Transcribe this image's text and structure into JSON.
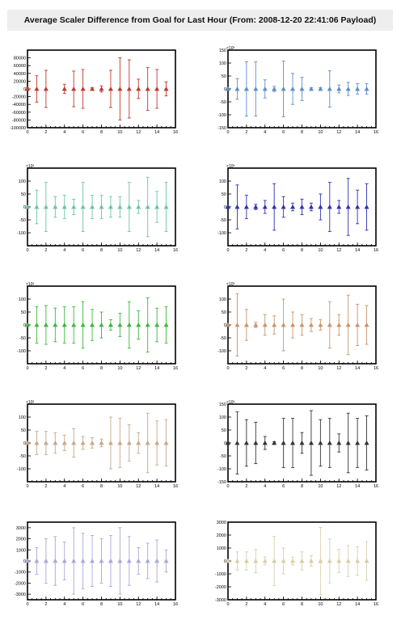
{
  "title": "Average Scaler Difference from Goal for Last Hour (From: 2008-12-20 22:41:06 Payload)",
  "chart_data": [
    {
      "type": "scatter",
      "color": "#c0392b",
      "xlim": [
        0,
        16
      ],
      "ylim": [
        -100000,
        100000
      ],
      "xticks": [
        0,
        2,
        4,
        6,
        8,
        10,
        12,
        14,
        16
      ],
      "yticks": [
        -100000,
        -80000,
        -60000,
        -40000,
        -20000,
        0,
        20000,
        40000,
        60000,
        80000
      ],
      "ytick_labels": [
        "-100000",
        "-80000",
        "-60000",
        "-40000",
        "-20000",
        "0",
        "20000",
        "40000",
        "60000",
        "80000"
      ],
      "exponent": "",
      "x": [
        0,
        1,
        2,
        4,
        5,
        6,
        7,
        8,
        9,
        10,
        11,
        12,
        13,
        14,
        15
      ],
      "y": [
        0,
        0,
        0,
        0,
        0,
        0,
        0,
        0,
        0,
        0,
        0,
        0,
        0,
        0,
        0
      ],
      "err": [
        3000,
        34000,
        48000,
        12000,
        46000,
        50000,
        3000,
        8000,
        48000,
        80000,
        75000,
        25000,
        55000,
        50000,
        18000
      ]
    },
    {
      "type": "scatter",
      "color": "#5b8fc7",
      "xlim": [
        0,
        16
      ],
      "ylim": [
        -150,
        150
      ],
      "xticks": [
        0,
        2,
        4,
        6,
        8,
        10,
        12,
        14,
        16
      ],
      "yticks": [
        -150,
        -100,
        -50,
        0,
        50,
        100,
        150
      ],
      "ytick_labels": [
        "-150",
        "-100",
        "-50",
        "0",
        "50",
        "100",
        "150"
      ],
      "exponent": "×10³",
      "x": [
        0,
        1,
        2,
        3,
        4,
        5,
        6,
        7,
        8,
        9,
        10,
        11,
        12,
        13,
        14,
        15
      ],
      "y": [
        0,
        0,
        0,
        0,
        0,
        0,
        0,
        0,
        0,
        0,
        0,
        0,
        0,
        0,
        0,
        0
      ],
      "err": [
        3,
        40,
        105,
        105,
        35,
        10,
        108,
        60,
        45,
        5,
        5,
        70,
        15,
        25,
        20,
        20
      ]
    },
    {
      "type": "scatter",
      "color": "#6cc3a8",
      "xlim": [
        0,
        16
      ],
      "ylim": [
        -150,
        150
      ],
      "xticks": [
        0,
        2,
        4,
        6,
        8,
        10,
        12,
        14,
        16
      ],
      "yticks": [
        -100,
        -50,
        0,
        50,
        100
      ],
      "ytick_labels": [
        "-100",
        "-50",
        "0",
        "50",
        "100"
      ],
      "exponent": "×10³",
      "x": [
        0,
        1,
        2,
        3,
        4,
        5,
        6,
        7,
        8,
        9,
        10,
        11,
        12,
        13,
        14,
        15
      ],
      "y": [
        0,
        0,
        0,
        0,
        0,
        0,
        0,
        0,
        0,
        0,
        0,
        0,
        0,
        0,
        0,
        0
      ],
      "err": [
        3,
        65,
        95,
        40,
        45,
        30,
        95,
        45,
        45,
        40,
        40,
        95,
        25,
        115,
        60,
        95
      ]
    },
    {
      "type": "scatter",
      "color": "#2f2fb0",
      "xlim": [
        0,
        16
      ],
      "ylim": [
        -150,
        150
      ],
      "xticks": [
        0,
        2,
        4,
        6,
        8,
        10,
        12,
        14,
        16
      ],
      "yticks": [
        -100,
        -50,
        0,
        50,
        100
      ],
      "ytick_labels": [
        "-100",
        "-50",
        "0",
        "50",
        "100"
      ],
      "exponent": "×10³",
      "x": [
        0,
        1,
        2,
        3,
        4,
        5,
        6,
        7,
        8,
        9,
        10,
        11,
        12,
        13,
        14,
        15
      ],
      "y": [
        0,
        0,
        0,
        0,
        0,
        0,
        0,
        0,
        0,
        0,
        0,
        0,
        0,
        0,
        0,
        0
      ],
      "err": [
        3,
        85,
        45,
        10,
        25,
        90,
        40,
        15,
        30,
        15,
        50,
        95,
        25,
        110,
        65,
        90
      ]
    },
    {
      "type": "scatter",
      "color": "#3cb83c",
      "xlim": [
        0,
        16
      ],
      "ylim": [
        -150,
        150
      ],
      "xticks": [
        0,
        2,
        4,
        6,
        8,
        10,
        12,
        14,
        16
      ],
      "yticks": [
        -100,
        -50,
        0,
        50,
        100
      ],
      "ytick_labels": [
        "-100",
        "-50",
        "0",
        "50",
        "100"
      ],
      "exponent": "×10³",
      "x": [
        0,
        1,
        2,
        3,
        4,
        5,
        6,
        7,
        8,
        9,
        10,
        11,
        12,
        13,
        14,
        15
      ],
      "y": [
        0,
        0,
        0,
        0,
        0,
        0,
        0,
        0,
        0,
        0,
        0,
        0,
        0,
        0,
        0,
        0
      ],
      "err": [
        3,
        70,
        75,
        65,
        70,
        70,
        90,
        60,
        50,
        20,
        45,
        90,
        55,
        105,
        65,
        70
      ]
    },
    {
      "type": "scatter",
      "color": "#c8956a",
      "xlim": [
        0,
        16
      ],
      "ylim": [
        -150,
        150
      ],
      "xticks": [
        0,
        2,
        4,
        6,
        8,
        10,
        12,
        14,
        16
      ],
      "yticks": [
        -100,
        -50,
        0,
        50,
        100
      ],
      "ytick_labels": [
        "-100",
        "-50",
        "0",
        "50",
        "100"
      ],
      "exponent": "×10³",
      "x": [
        0,
        1,
        2,
        3,
        4,
        5,
        6,
        7,
        8,
        9,
        10,
        11,
        12,
        13,
        14,
        15
      ],
      "y": [
        0,
        0,
        0,
        0,
        0,
        0,
        0,
        0,
        0,
        0,
        0,
        0,
        0,
        0,
        0,
        0
      ],
      "err": [
        3,
        120,
        60,
        10,
        40,
        35,
        100,
        50,
        40,
        25,
        20,
        90,
        40,
        115,
        80,
        75
      ]
    },
    {
      "type": "scatter",
      "color": "#c5a88a",
      "xlim": [
        0,
        16
      ],
      "ylim": [
        -150,
        150
      ],
      "xticks": [
        0,
        2,
        4,
        6,
        8,
        10,
        12,
        14,
        16
      ],
      "yticks": [
        -100,
        -50,
        0,
        50,
        100
      ],
      "ytick_labels": [
        "-100",
        "-50",
        "0",
        "50",
        "100"
      ],
      "exponent": "×10³",
      "x": [
        0,
        1,
        2,
        3,
        4,
        5,
        6,
        7,
        8,
        9,
        10,
        11,
        12,
        13,
        14,
        15
      ],
      "y": [
        0,
        0,
        0,
        0,
        0,
        0,
        0,
        0,
        0,
        0,
        0,
        0,
        0,
        0,
        0,
        0
      ],
      "err": [
        3,
        45,
        45,
        40,
        30,
        55,
        25,
        20,
        15,
        100,
        95,
        70,
        40,
        115,
        85,
        90
      ]
    },
    {
      "type": "scatter",
      "color": "#333333",
      "xlim": [
        0,
        16
      ],
      "ylim": [
        -150,
        150
      ],
      "xticks": [
        0,
        2,
        4,
        6,
        8,
        10,
        12,
        14,
        16
      ],
      "yticks": [
        -150,
        -100,
        -50,
        0,
        50,
        100,
        150
      ],
      "ytick_labels": [
        "-150",
        "-100",
        "-50",
        "0",
        "50",
        "100",
        "150"
      ],
      "exponent": "×10³",
      "x": [
        0,
        1,
        2,
        3,
        4,
        5,
        6,
        7,
        8,
        9,
        10,
        11,
        12,
        13,
        14,
        15
      ],
      "y": [
        0,
        0,
        0,
        0,
        0,
        0,
        0,
        0,
        0,
        0,
        0,
        0,
        0,
        0,
        0,
        0
      ],
      "err": [
        3,
        120,
        90,
        80,
        25,
        5,
        95,
        95,
        40,
        125,
        90,
        95,
        35,
        115,
        95,
        105
      ]
    },
    {
      "type": "scatter",
      "color": "#a8a8d8",
      "xlim": [
        0,
        16
      ],
      "ylim": [
        -3500,
        3500
      ],
      "xticks": [
        0,
        2,
        4,
        6,
        8,
        10,
        12,
        14,
        16
      ],
      "yticks": [
        -3000,
        -2000,
        -1000,
        0,
        1000,
        2000,
        3000
      ],
      "ytick_labels": [
        "-3000",
        "-2000",
        "-1000",
        "0",
        "1000",
        "2000",
        "3000"
      ],
      "exponent": "",
      "x": [
        0,
        1,
        2,
        3,
        4,
        5,
        6,
        7,
        8,
        9,
        10,
        11,
        12,
        13,
        14,
        15
      ],
      "y": [
        0,
        0,
        0,
        0,
        0,
        0,
        0,
        0,
        0,
        0,
        0,
        0,
        0,
        0,
        0,
        0
      ],
      "err": [
        50,
        1200,
        2000,
        2200,
        1700,
        3000,
        2500,
        2300,
        2000,
        2300,
        3000,
        2200,
        1200,
        1600,
        1900,
        1000
      ]
    },
    {
      "type": "scatter",
      "color": "#d8cfa8",
      "xlim": [
        0,
        16
      ],
      "ylim": [
        -3000,
        3000
      ],
      "xticks": [
        0,
        2,
        4,
        6,
        8,
        10,
        12,
        14,
        16
      ],
      "yticks": [
        -3000,
        -2000,
        -1000,
        0,
        1000,
        2000,
        3000
      ],
      "ytick_labels": [
        "-3000",
        "-2000",
        "-1000",
        "0",
        "1000",
        "2000",
        "3000"
      ],
      "exponent": "",
      "x": [
        0,
        1,
        2,
        3,
        4,
        5,
        6,
        7,
        8,
        9,
        10,
        11,
        12,
        13,
        14,
        15
      ],
      "y": [
        0,
        0,
        0,
        0,
        0,
        0,
        0,
        0,
        0,
        0,
        0,
        0,
        0,
        0,
        0,
        0
      ],
      "err": [
        50,
        700,
        700,
        900,
        300,
        1900,
        1000,
        300,
        700,
        400,
        2600,
        1700,
        900,
        1200,
        1100,
        1500
      ]
    }
  ]
}
